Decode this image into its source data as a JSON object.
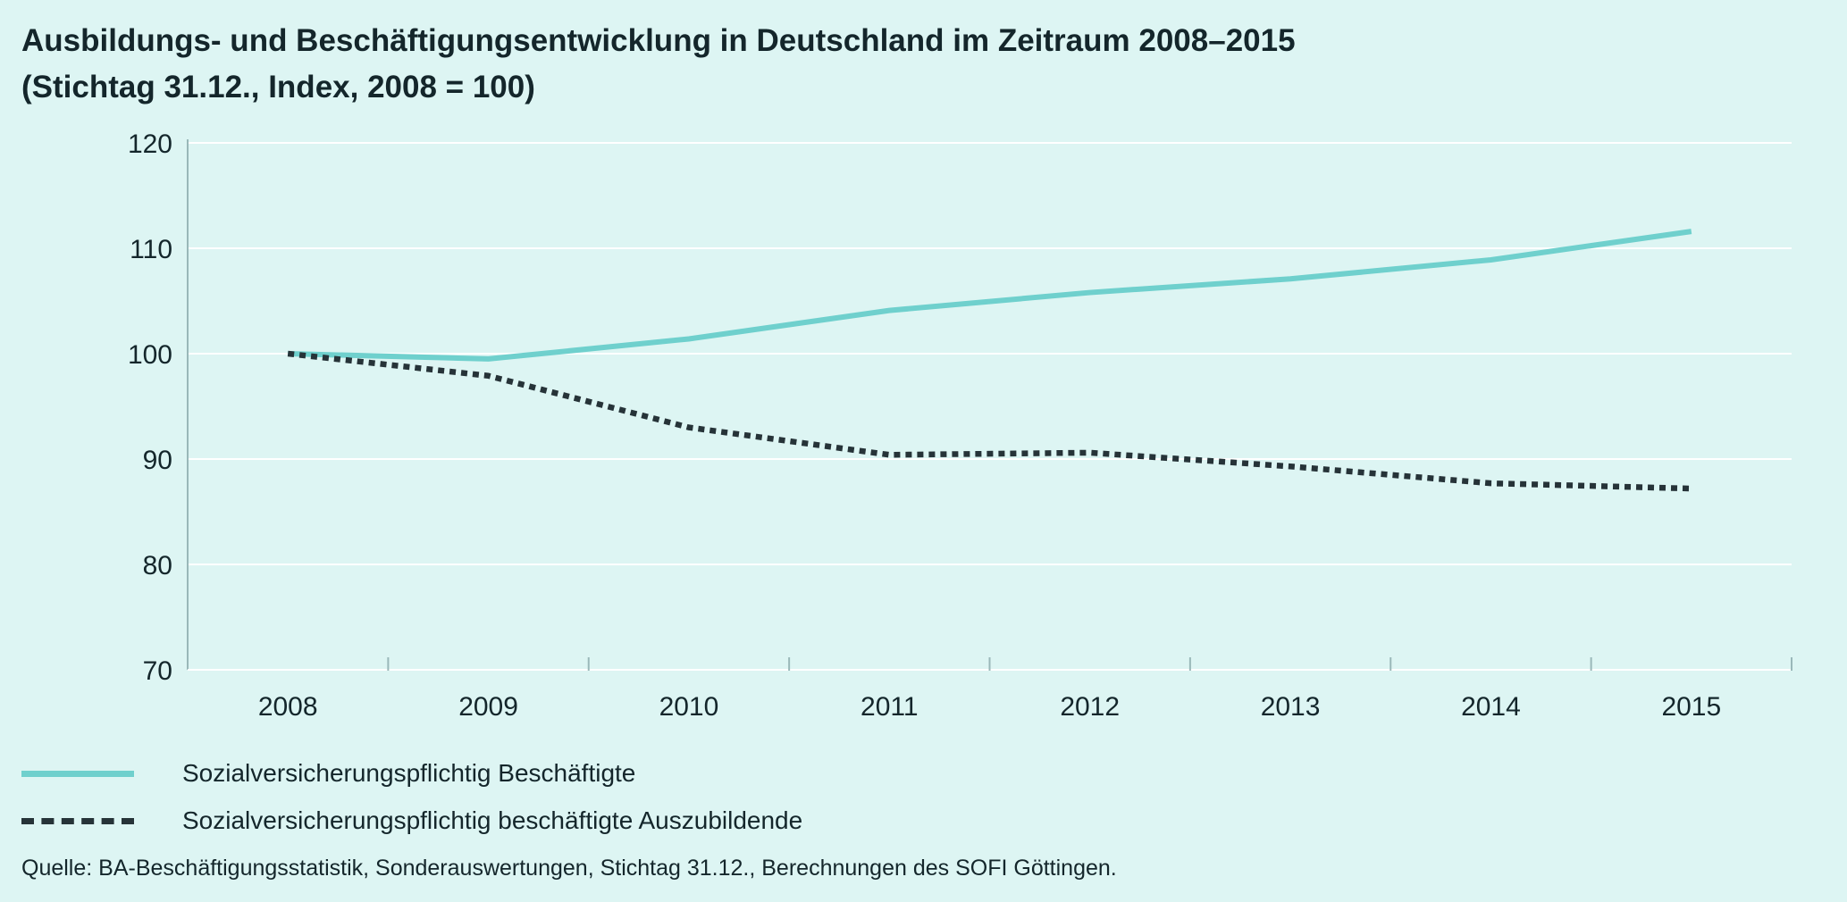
{
  "title": {
    "line1": "Ausbildungs- und Beschäftigungsentwicklung in Deutschland im Zeitraum 2008–2015",
    "line2": "(Stichtag 31.12., Index, 2008 = 100)"
  },
  "legend": [
    {
      "label": "Sozialversicherungspflichtig Beschäftigte",
      "style": "solid",
      "color": "#6fd0cd"
    },
    {
      "label": "Sozialversicherungspflichtig beschäftigte Auszubildende",
      "style": "dotted",
      "color": "#263338"
    }
  ],
  "source": "Quelle: BA-Beschäftigungsstatistik, Sonderauswertungen, Stichtag 31.12., Berechnungen des SOFI Göttingen.",
  "chart_data": {
    "type": "line",
    "x": [
      "2008",
      "2009",
      "2010",
      "2011",
      "2012",
      "2013",
      "2014",
      "2015"
    ],
    "ylim": [
      70,
      120
    ],
    "yticks": [
      70,
      80,
      90,
      100,
      110,
      120
    ],
    "grid": true,
    "legend_position": "bottom",
    "series": [
      {
        "name": "Sozialversicherungspflichtig Beschäftigte",
        "values": [
          100,
          99.5,
          101.4,
          104.1,
          105.8,
          107.1,
          108.9,
          111.6
        ],
        "color": "#6fd0cd",
        "style": "solid"
      },
      {
        "name": "Sozialversicherungspflichtig beschäftigte Auszubildende",
        "values": [
          100,
          97.9,
          93.0,
          90.4,
          90.6,
          89.3,
          87.7,
          87.2
        ],
        "color": "#263338",
        "style": "dotted"
      }
    ]
  }
}
